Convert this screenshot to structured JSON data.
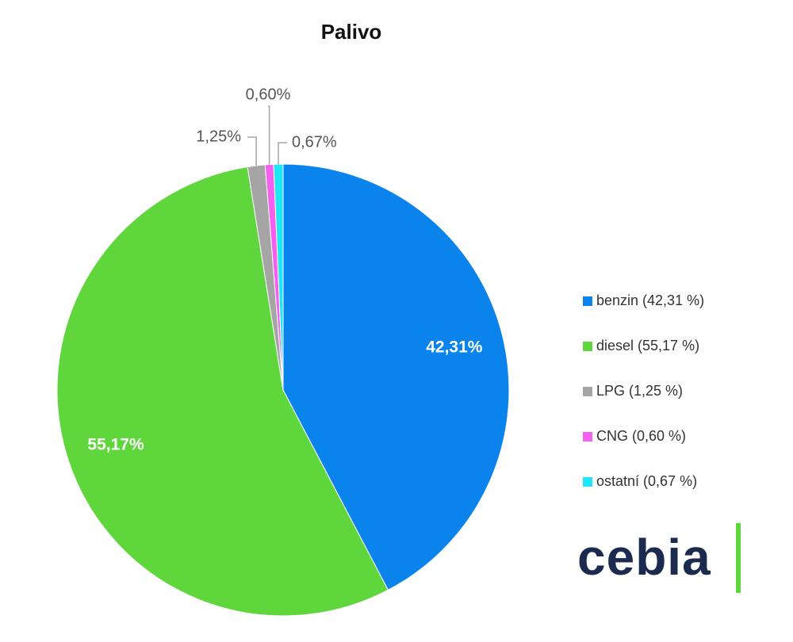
{
  "chart_data": {
    "type": "pie",
    "title": "Palivo",
    "categories": [
      "benzin (42,31 %)",
      "diesel (55,17 %)",
      "LPG (1,25 %)",
      "CNG (0,60 %)",
      "ostatní (0,67 %)"
    ],
    "values": [
      42.31,
      55.17,
      1.25,
      0.6,
      0.67
    ],
    "value_labels": [
      "42,31%",
      "55,17%",
      "1,25%",
      "0,60%",
      "0,67%"
    ],
    "colors": [
      "#0a84ec",
      "#5fd63c",
      "#a5a5a5",
      "#f45ff0",
      "#1ee6f5"
    ],
    "legend": "right"
  },
  "logo": "cebia"
}
